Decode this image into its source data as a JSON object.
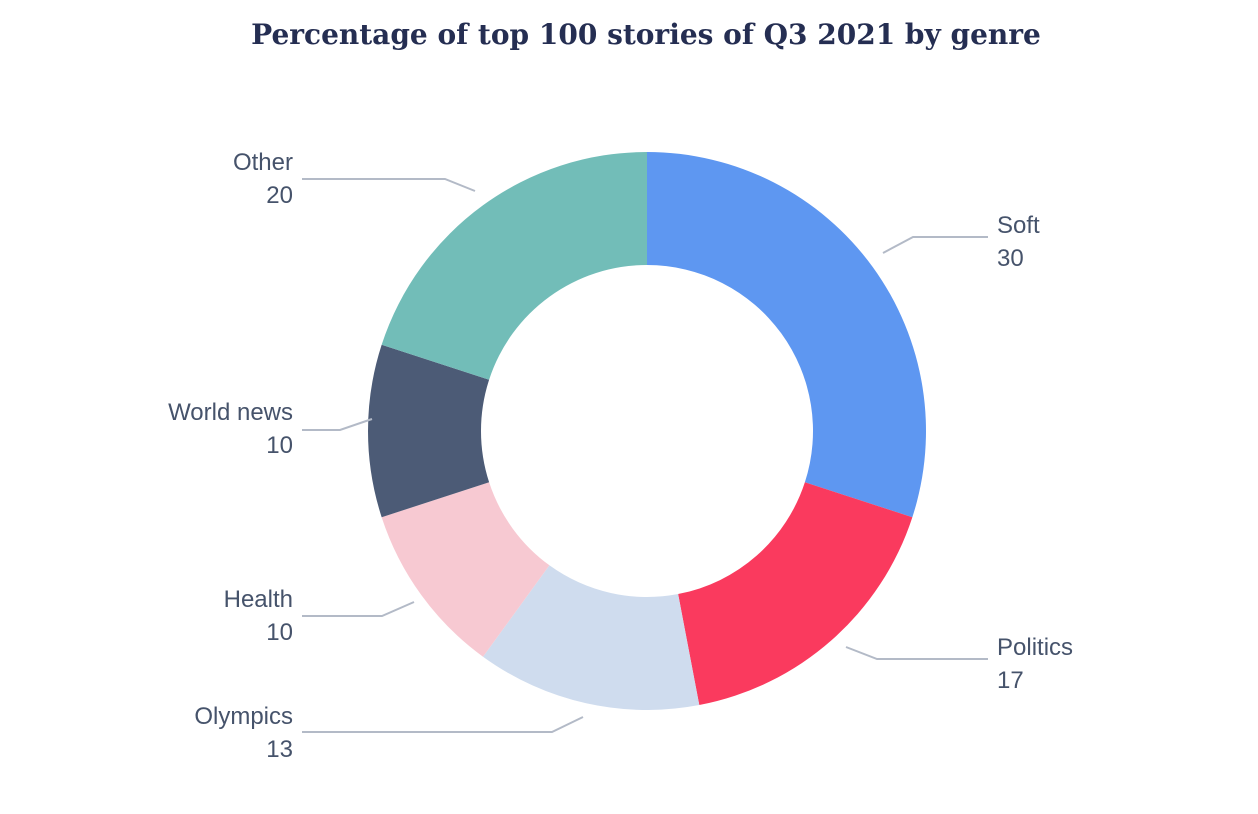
{
  "title": "Percentage of top 100 stories of Q3 2021 by genre",
  "chart_data": {
    "type": "pie",
    "subtype": "donut",
    "title": "Percentage of top 100 stories of Q3 2021 by genre",
    "total": 100,
    "start_angle": "top",
    "direction": "clockwise",
    "inner_radius_ratio": 0.595,
    "legend": "none",
    "label_style": "external-callouts-with-leader-lines",
    "slices": [
      {
        "label": "Soft",
        "value": 30,
        "color": "#5e97f1"
      },
      {
        "label": "Politics",
        "value": 17,
        "color": "#fa3a5e"
      },
      {
        "label": "Olympics",
        "value": 13,
        "color": "#cfdcee"
      },
      {
        "label": "Health",
        "value": 10,
        "color": "#f7c9d2"
      },
      {
        "label": "World news",
        "value": 10,
        "color": "#4c5b76"
      },
      {
        "label": "Other",
        "value": 20,
        "color": "#72bdb8"
      }
    ]
  }
}
